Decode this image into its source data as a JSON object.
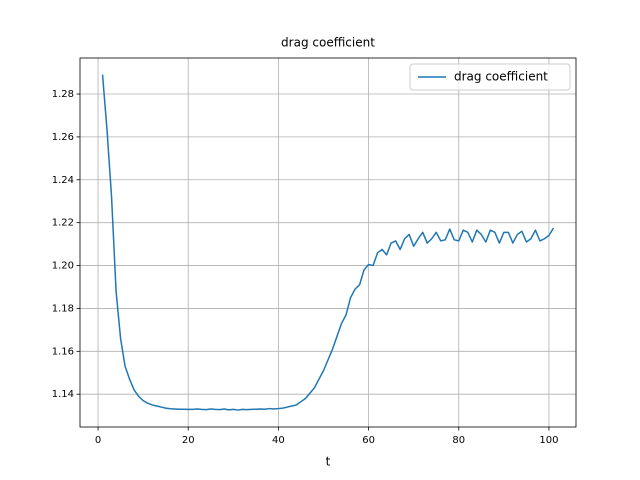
{
  "chart_data": {
    "type": "line",
    "title": "drag coefficient",
    "xlabel": "t",
    "x": [
      1,
      2,
      3,
      4,
      5,
      6,
      7,
      8,
      9,
      10,
      11,
      12,
      13,
      14,
      15,
      16,
      17,
      18,
      19,
      20,
      21,
      22,
      23,
      24,
      25,
      26,
      27,
      28,
      29,
      30,
      31,
      32,
      33,
      34,
      35,
      36,
      37,
      38,
      39,
      40,
      41,
      42,
      43,
      44,
      45,
      46,
      47,
      48,
      49,
      50,
      51,
      52,
      53,
      54,
      55,
      56,
      57,
      58,
      59,
      60,
      61,
      62,
      63,
      64,
      65,
      66,
      67,
      68,
      69,
      70,
      71,
      72,
      73,
      74,
      75,
      76,
      77,
      78,
      79,
      80,
      81,
      82,
      83,
      84,
      85,
      86,
      87,
      88,
      89,
      90,
      91,
      92,
      93,
      94,
      95,
      96,
      97,
      98,
      99,
      100,
      101
    ],
    "series": [
      {
        "name": "drag coefficient",
        "color": "#1f77b4",
        "values": [
          1.289,
          1.263,
          1.232,
          1.188,
          1.166,
          1.153,
          1.147,
          1.142,
          1.139,
          1.137,
          1.1358,
          1.135,
          1.1345,
          1.134,
          1.1335,
          1.1332,
          1.1331,
          1.133,
          1.133,
          1.1329,
          1.1329,
          1.1331,
          1.1329,
          1.1328,
          1.1331,
          1.1329,
          1.1328,
          1.1331,
          1.1327,
          1.1329,
          1.1326,
          1.1329,
          1.1328,
          1.1329,
          1.133,
          1.1331,
          1.133,
          1.1333,
          1.1331,
          1.1333,
          1.1335,
          1.134,
          1.1345,
          1.135,
          1.1365,
          1.138,
          1.1405,
          1.143,
          1.147,
          1.151,
          1.156,
          1.161,
          1.167,
          1.173,
          1.177,
          1.185,
          1.189,
          1.191,
          1.198,
          1.2005,
          1.2,
          1.206,
          1.2075,
          1.205,
          1.2105,
          1.2115,
          1.2075,
          1.2125,
          1.2145,
          1.209,
          1.2125,
          1.2155,
          1.2105,
          1.2125,
          1.2155,
          1.2115,
          1.212,
          1.217,
          1.212,
          1.2115,
          1.2165,
          1.2155,
          1.211,
          1.2165,
          1.2145,
          1.211,
          1.2165,
          1.2155,
          1.2105,
          1.2155,
          1.2155,
          1.2105,
          1.2145,
          1.216,
          1.211,
          1.2125,
          1.2165,
          1.2115,
          1.2125,
          1.214,
          1.2175
        ]
      }
    ],
    "xlim": [
      -4,
      106
    ],
    "xticks": [
      0,
      20,
      40,
      60,
      80,
      100
    ],
    "ylim": [
      1.1247,
      1.2968
    ],
    "yticks": [
      1.14,
      1.16,
      1.18,
      {
        "value": 1.2,
        "label": "1.20"
      },
      1.22,
      1.24,
      1.26,
      1.28
    ],
    "grid": true,
    "legend": "upper-right"
  }
}
